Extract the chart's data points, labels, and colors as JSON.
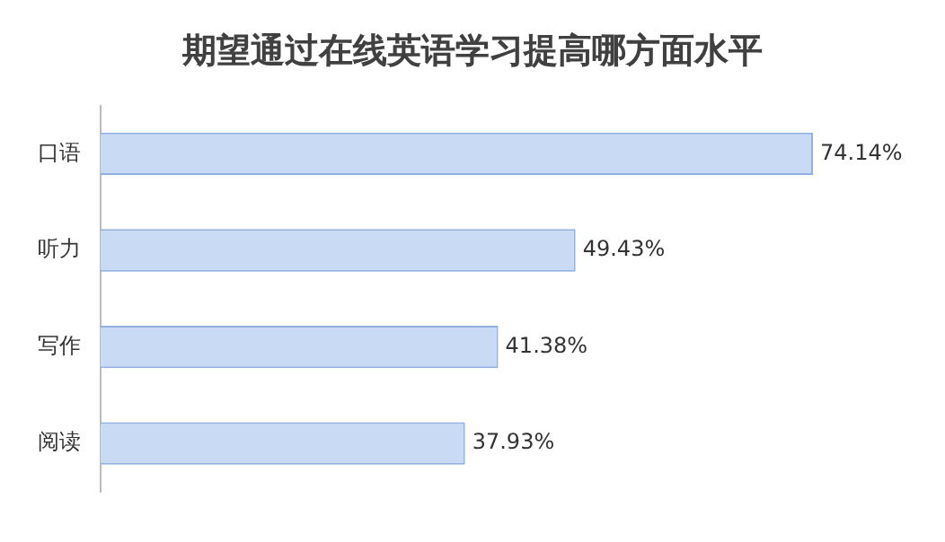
{
  "chart_data": {
    "type": "bar",
    "orientation": "horizontal",
    "title": "期望通过在线英语学习提高哪方面水平",
    "categories": [
      "口语",
      "听力",
      "写作",
      "阅读"
    ],
    "values": [
      74.14,
      49.43,
      41.38,
      37.93
    ],
    "value_labels": [
      "74.14%",
      "49.43%",
      "41.38%",
      "37.93%"
    ],
    "color": "#c9daf5"
  }
}
